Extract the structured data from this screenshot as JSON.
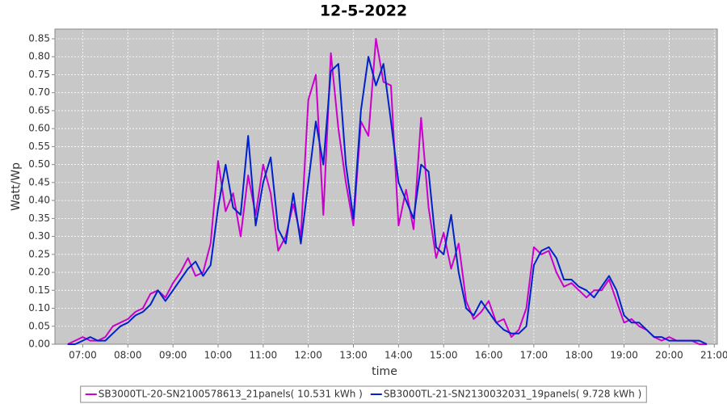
{
  "chart_data": {
    "type": "line",
    "title": "12-5-2022",
    "x_label": "time",
    "y_label": "Watt/Wp",
    "x": [
      "06:40",
      "06:50",
      "07:00",
      "07:10",
      "07:20",
      "07:30",
      "07:40",
      "07:50",
      "08:00",
      "08:10",
      "08:20",
      "08:30",
      "08:40",
      "08:50",
      "09:00",
      "09:10",
      "09:20",
      "09:30",
      "09:40",
      "09:50",
      "10:00",
      "10:10",
      "10:20",
      "10:30",
      "10:40",
      "10:50",
      "11:00",
      "11:10",
      "11:20",
      "11:30",
      "11:40",
      "11:50",
      "12:00",
      "12:10",
      "12:20",
      "12:30",
      "12:40",
      "12:50",
      "13:00",
      "13:10",
      "13:20",
      "13:30",
      "13:40",
      "13:50",
      "14:00",
      "14:10",
      "14:20",
      "14:30",
      "14:40",
      "14:50",
      "15:00",
      "15:10",
      "15:20",
      "15:30",
      "15:40",
      "15:50",
      "16:00",
      "16:10",
      "16:20",
      "16:30",
      "16:40",
      "16:50",
      "17:00",
      "17:10",
      "17:20",
      "17:30",
      "17:40",
      "17:50",
      "18:00",
      "18:10",
      "18:20",
      "18:30",
      "18:40",
      "18:50",
      "19:00",
      "19:10",
      "19:20",
      "19:30",
      "19:40",
      "19:50",
      "20:00",
      "20:10",
      "20:20",
      "20:30",
      "20:40",
      "20:50"
    ],
    "series": [
      {
        "name": "SB3000TL-20-SN2100578613_21panels( 10.531 kWh )",
        "color": "#cc00cc",
        "values": [
          0.0,
          0.01,
          0.02,
          0.01,
          0.01,
          0.02,
          0.05,
          0.06,
          0.07,
          0.09,
          0.1,
          0.14,
          0.15,
          0.13,
          0.17,
          0.2,
          0.24,
          0.19,
          0.2,
          0.28,
          0.51,
          0.37,
          0.42,
          0.3,
          0.47,
          0.36,
          0.5,
          0.42,
          0.26,
          0.3,
          0.39,
          0.3,
          0.68,
          0.75,
          0.36,
          0.81,
          0.6,
          0.45,
          0.33,
          0.62,
          0.58,
          0.85,
          0.73,
          0.72,
          0.33,
          0.43,
          0.32,
          0.63,
          0.38,
          0.24,
          0.31,
          0.21,
          0.28,
          0.12,
          0.07,
          0.09,
          0.12,
          0.06,
          0.07,
          0.02,
          0.04,
          0.1,
          0.27,
          0.25,
          0.26,
          0.2,
          0.16,
          0.17,
          0.15,
          0.13,
          0.15,
          0.15,
          0.18,
          0.12,
          0.06,
          0.07,
          0.05,
          0.04,
          0.02,
          0.01,
          0.02,
          0.01,
          0.01,
          0.01,
          0.0,
          0.0
        ]
      },
      {
        "name": "SB3000TL-21-SN2130032031_19panels( 9.728 kWh )",
        "color": "#0022cc",
        "values": [
          0.0,
          0.0,
          0.01,
          0.02,
          0.01,
          0.01,
          0.03,
          0.05,
          0.06,
          0.08,
          0.09,
          0.11,
          0.15,
          0.12,
          0.15,
          0.18,
          0.21,
          0.23,
          0.19,
          0.22,
          0.38,
          0.5,
          0.38,
          0.36,
          0.58,
          0.33,
          0.45,
          0.52,
          0.32,
          0.28,
          0.42,
          0.28,
          0.45,
          0.62,
          0.5,
          0.76,
          0.78,
          0.5,
          0.35,
          0.65,
          0.8,
          0.72,
          0.78,
          0.62,
          0.45,
          0.4,
          0.35,
          0.5,
          0.48,
          0.27,
          0.25,
          0.36,
          0.2,
          0.1,
          0.08,
          0.12,
          0.09,
          0.06,
          0.04,
          0.03,
          0.03,
          0.05,
          0.22,
          0.26,
          0.27,
          0.24,
          0.18,
          0.18,
          0.16,
          0.15,
          0.13,
          0.16,
          0.19,
          0.15,
          0.08,
          0.06,
          0.06,
          0.04,
          0.02,
          0.02,
          0.01,
          0.01,
          0.01,
          0.01,
          0.01,
          0.0
        ]
      }
    ],
    "xlim": [
      "06:23",
      "21:04"
    ],
    "xticks": [
      "07:00",
      "08:00",
      "09:00",
      "10:00",
      "11:00",
      "12:00",
      "13:00",
      "14:00",
      "15:00",
      "16:00",
      "17:00",
      "18:00",
      "19:00",
      "20:00",
      "21:00"
    ],
    "ylim": [
      0,
      0.877
    ],
    "yticks": [
      {
        "value": 0,
        "label": "0.00"
      },
      {
        "value": 0.05,
        "label": "0.05"
      },
      {
        "value": 0.1,
        "label": "0.10"
      },
      {
        "value": 0.15,
        "label": "0.15"
      },
      {
        "value": 0.2,
        "label": "0.20"
      },
      {
        "value": 0.25,
        "label": "0.25"
      },
      {
        "value": 0.3,
        "label": "0.30"
      },
      {
        "value": 0.35,
        "label": "0.35"
      },
      {
        "value": 0.4,
        "label": "0.40"
      },
      {
        "value": 0.45,
        "label": "0.45"
      },
      {
        "value": 0.5,
        "label": "0.50"
      },
      {
        "value": 0.55,
        "label": "0.55"
      },
      {
        "value": 0.6,
        "label": "0.60"
      },
      {
        "value": 0.65,
        "label": "0.65"
      },
      {
        "value": 0.7,
        "label": "0.70"
      },
      {
        "value": 0.75,
        "label": "0.75"
      },
      {
        "value": 0.8,
        "label": "0.80"
      },
      {
        "value": 0.85,
        "label": "0.85"
      }
    ],
    "grid": true,
    "plot_background": "#c8c8c8",
    "legend": "bottom"
  }
}
